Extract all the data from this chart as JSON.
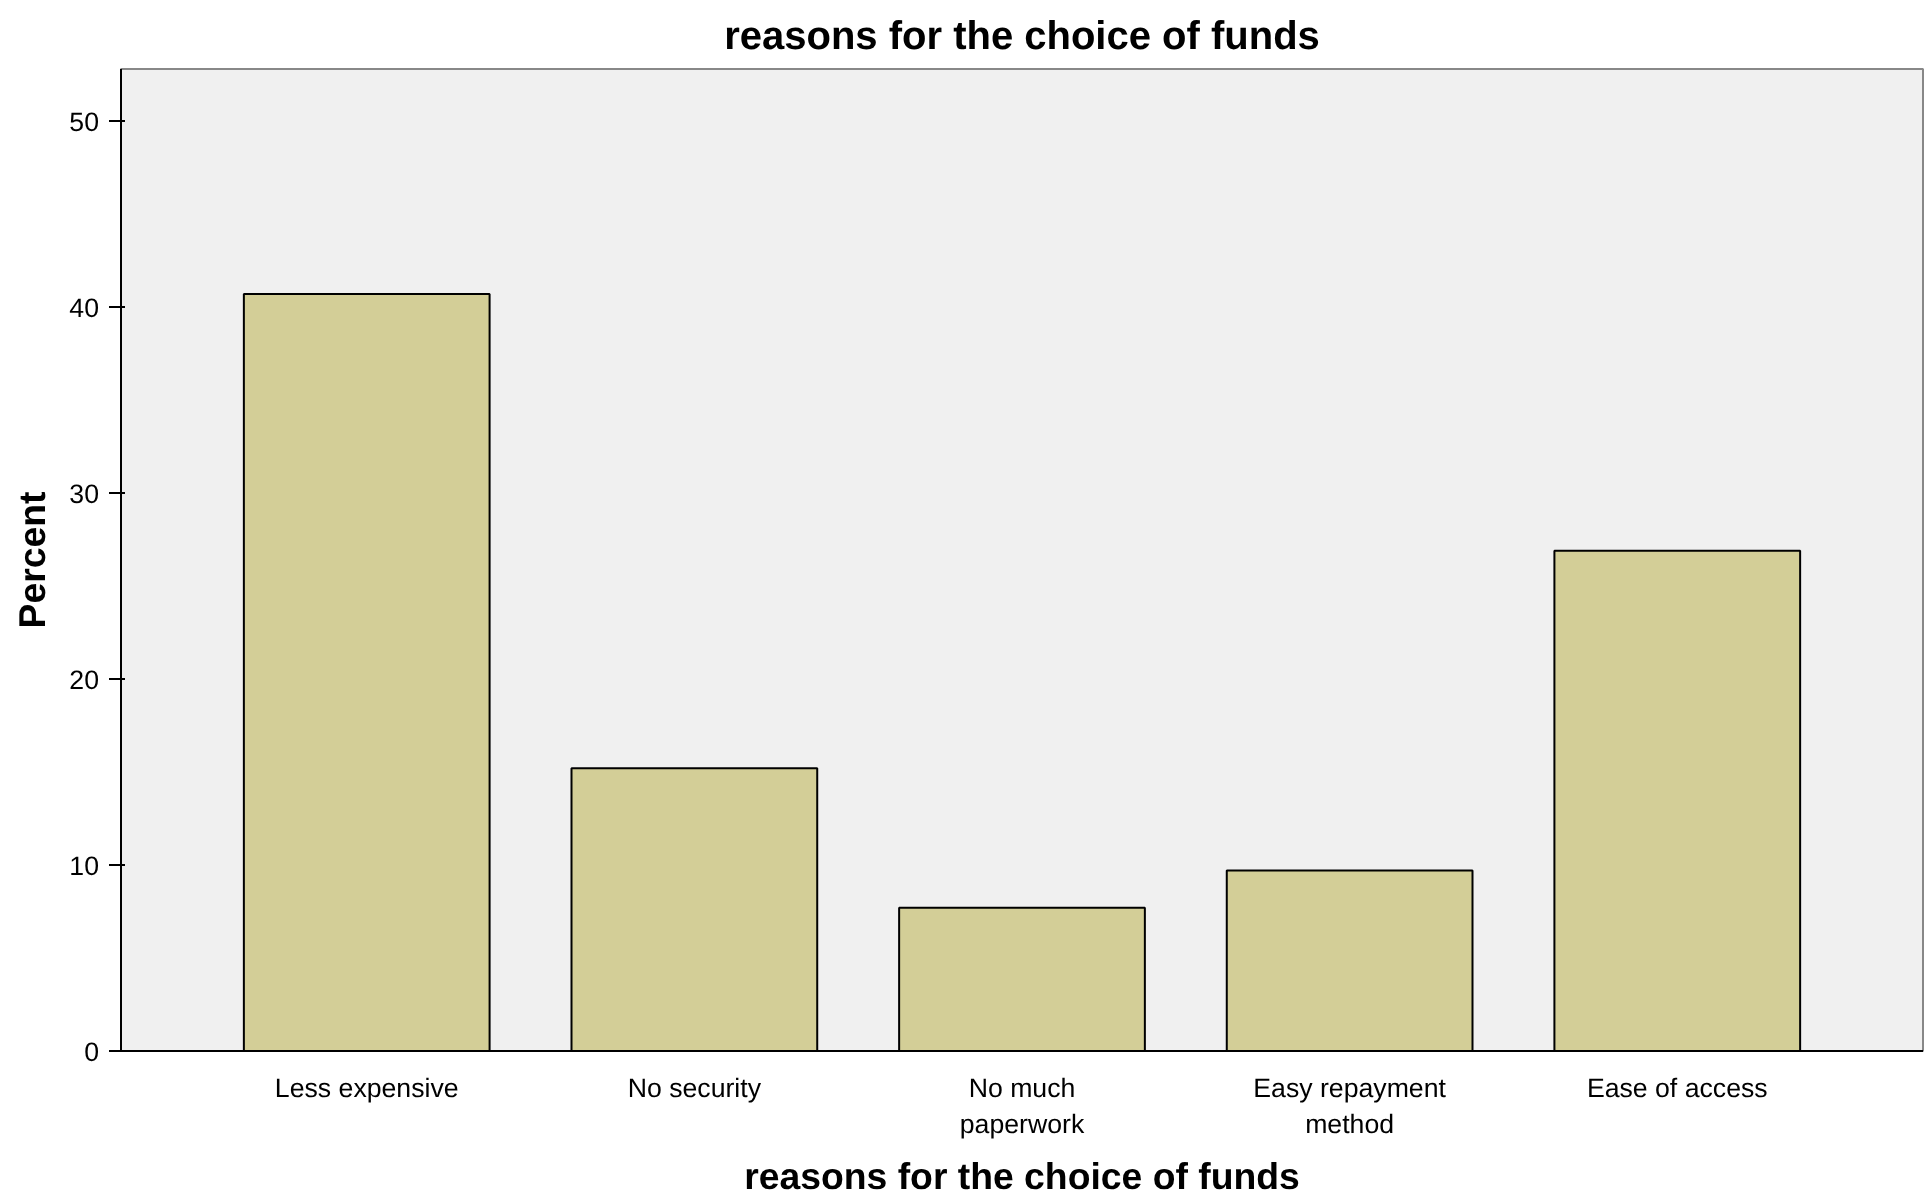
{
  "chart_data": {
    "type": "bar",
    "title": "reasons for the choice of funds",
    "xlabel": "reasons for the choice of funds",
    "ylabel": "Percent",
    "categories": [
      "Less expensive",
      "No security",
      "No much paperwork",
      "Easy repayment method",
      "Ease of access"
    ],
    "values": [
      40.7,
      15.2,
      7.7,
      9.7,
      26.9
    ],
    "color": "#d3ce97",
    "ylim": [
      0,
      52.8
    ],
    "yticks": [
      0,
      10,
      20,
      30,
      40,
      50
    ],
    "grid": false
  }
}
